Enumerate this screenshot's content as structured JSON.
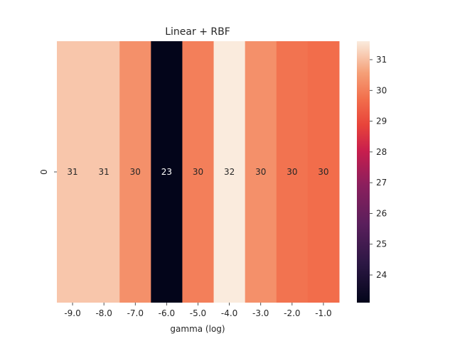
{
  "chart_data": {
    "type": "heatmap",
    "title": "Linear + RBF",
    "xlabel": "gamma (log)",
    "ylabel": "",
    "x": [
      "-9.0",
      "-8.0",
      "-7.0",
      "-6.0",
      "-5.0",
      "-4.0",
      "-3.0",
      "-2.0",
      "-1.0"
    ],
    "y": [
      "0"
    ],
    "values": [
      [
        31.1,
        31.1,
        30.3,
        23.1,
        30.0,
        31.6,
        30.3,
        29.8,
        29.7
      ]
    ],
    "annotations": [
      "31",
      "31",
      "30",
      "23",
      "30",
      "32",
      "30",
      "30",
      "30"
    ],
    "colorbar": {
      "colormap": "rocket",
      "range": [
        23.1,
        31.6
      ],
      "ticks": [
        "24",
        "25",
        "26",
        "27",
        "28",
        "29",
        "30",
        "31"
      ]
    }
  }
}
